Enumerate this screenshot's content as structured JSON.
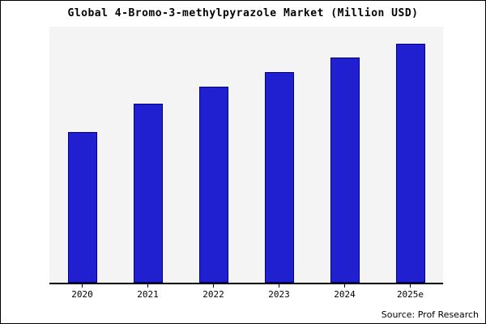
{
  "title": "Global 4-Bromo-3-methylpyrazole Market (Million USD)",
  "source": "Source: Prof Research",
  "colors": {
    "bar_fill": "#2020d0",
    "bar_border": "#00008b",
    "plot_bg": "#f4f4f4",
    "frame_border": "#000000"
  },
  "chart_data": {
    "type": "bar",
    "categories": [
      "2020",
      "2021",
      "2022",
      "2023",
      "2024",
      "2025e"
    ],
    "values": [
      63,
      75,
      82,
      88,
      94,
      100
    ],
    "title": "Global 4-Bromo-3-methylpyrazole Market (Million USD)",
    "xlabel": "",
    "ylabel": "",
    "ylim": [
      0,
      107
    ],
    "grid": false,
    "legend": false,
    "annotations": [
      "Source: Prof Research"
    ]
  }
}
